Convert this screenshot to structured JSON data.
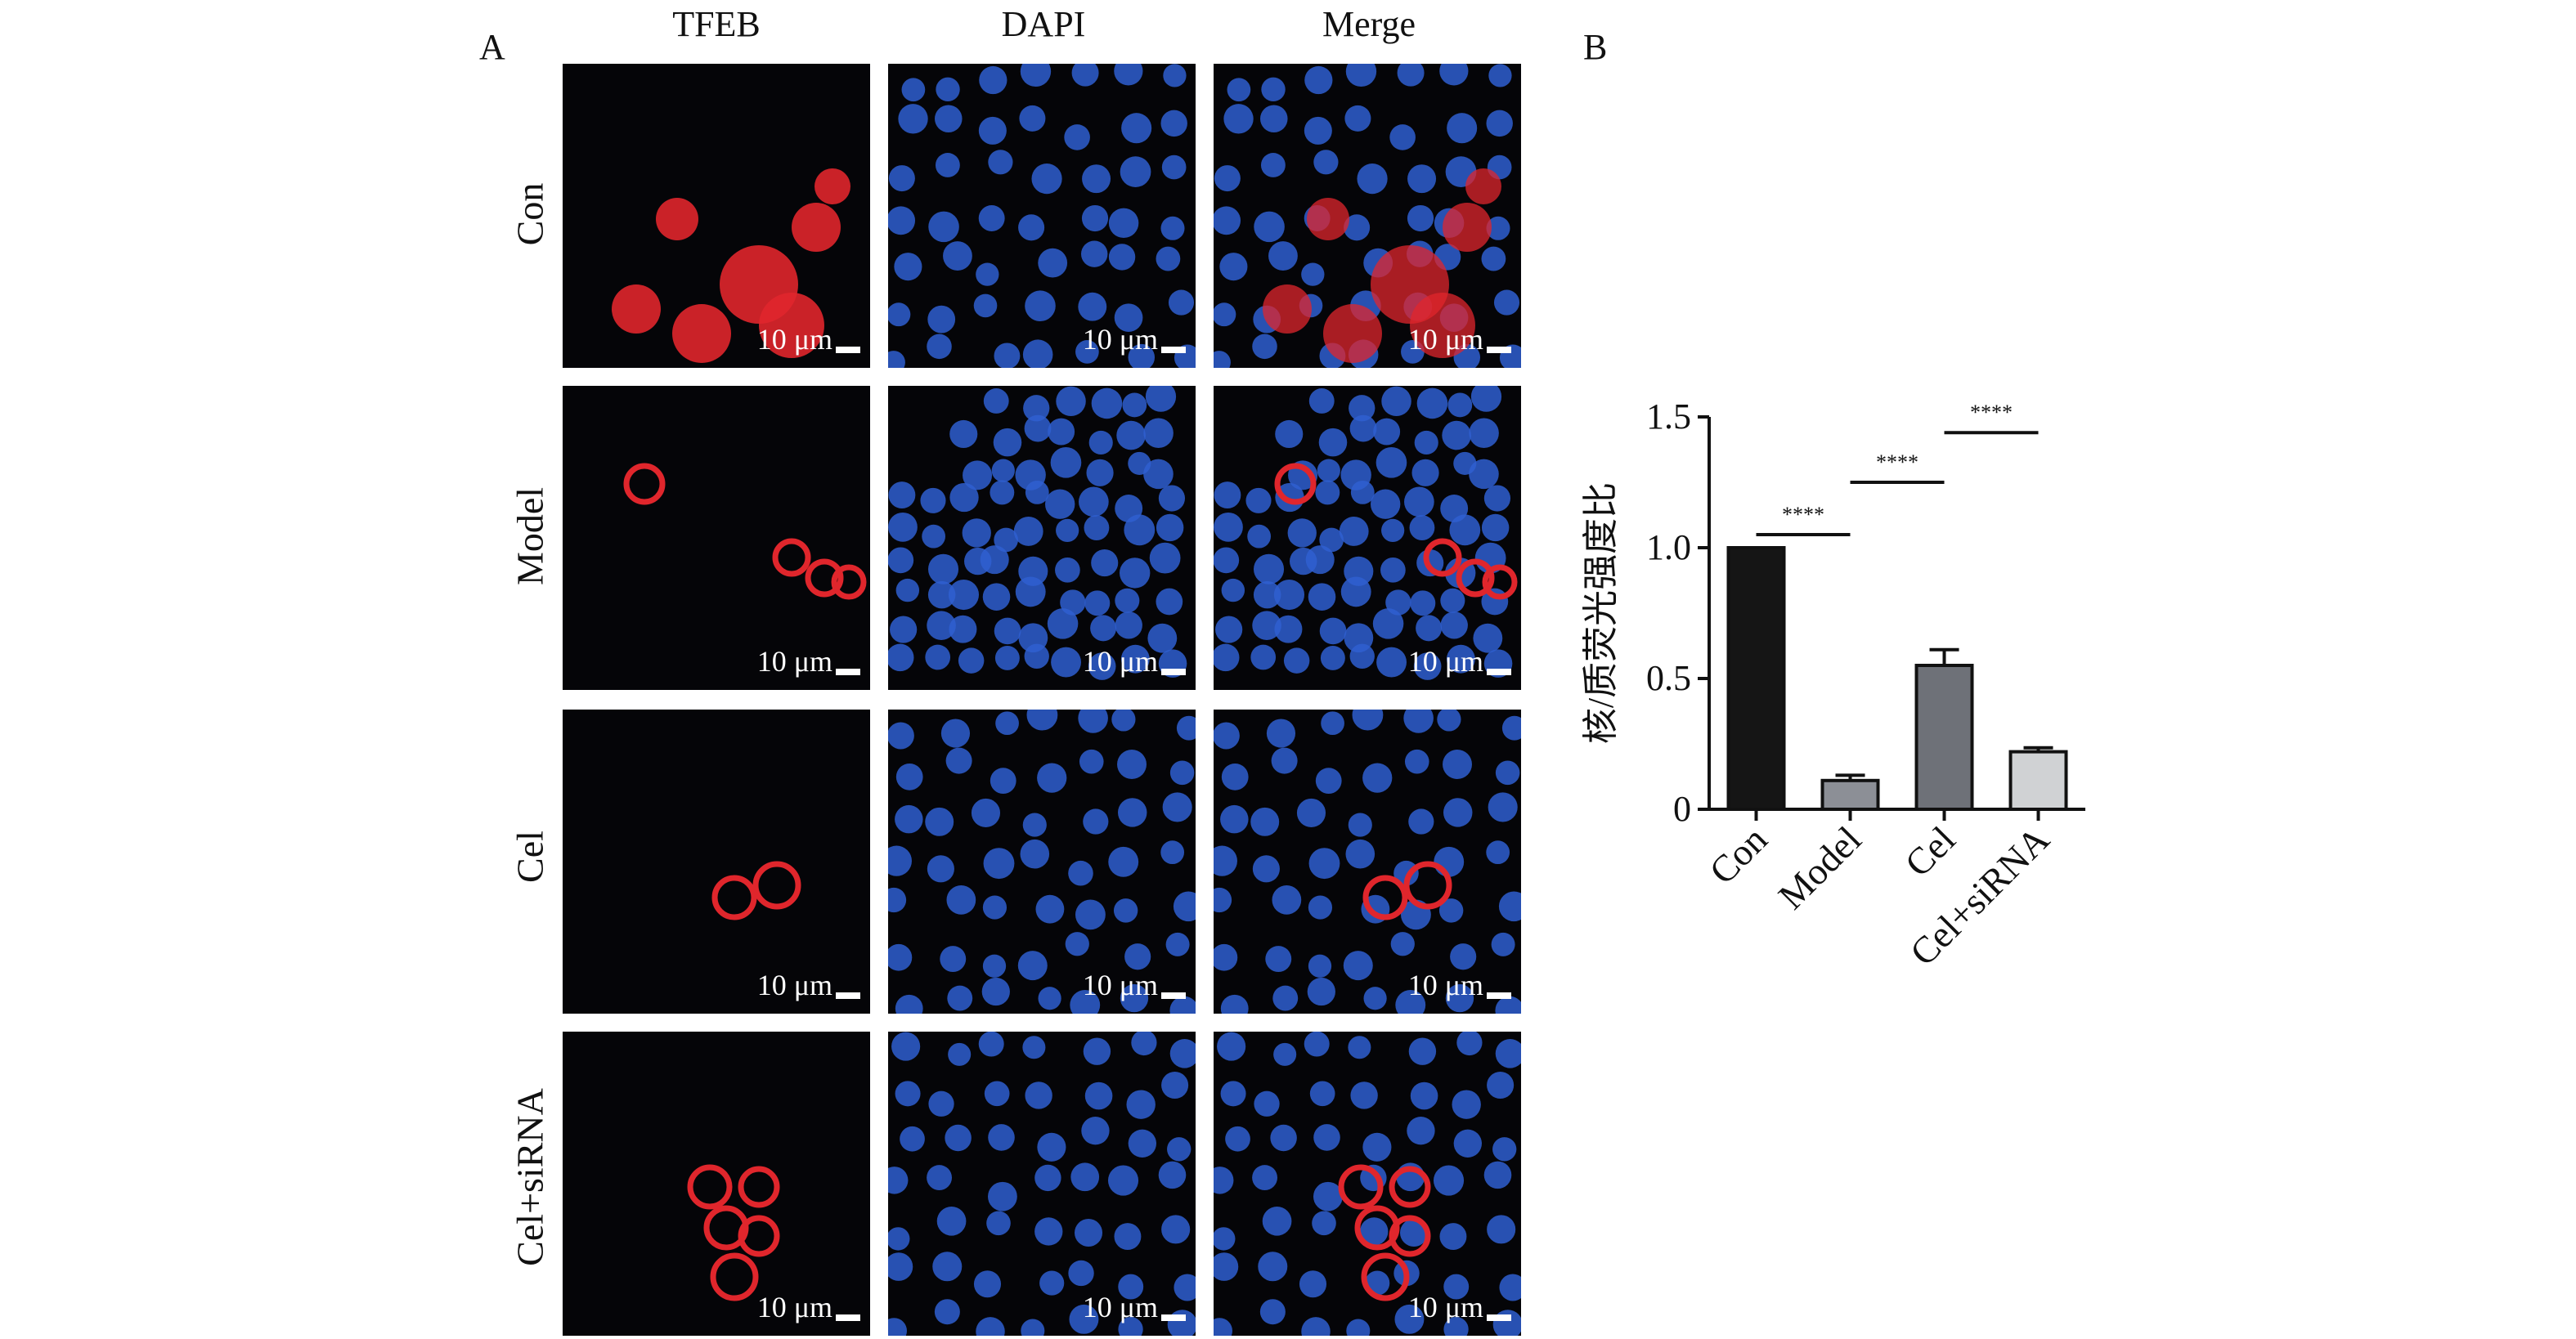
{
  "panel_a": {
    "letter": "A",
    "columns": [
      "TFEB",
      "DAPI",
      "Merge"
    ],
    "rows": [
      "Con",
      "Model",
      "Cel",
      "Cel+siRNA"
    ],
    "scale_label": "10 μm"
  },
  "panel_b": {
    "letter": "B"
  },
  "colors": {
    "tfeb_red": "#e0262c",
    "dapi_blue": "#2f5fd0",
    "background": "#050508"
  },
  "chart_data": {
    "type": "bar",
    "categories": [
      "Con",
      "Model",
      "Cel",
      "Cel+siRNA"
    ],
    "values": [
      1.0,
      0.11,
      0.55,
      0.22
    ],
    "errors": [
      0.0,
      0.02,
      0.06,
      0.015
    ],
    "bar_colors": [
      "#151515",
      "#8c8f96",
      "#6e7178",
      "#d0d2d4"
    ],
    "ylabel": "核/质荧光强度比",
    "xlabel": "",
    "ylim": [
      0,
      1.5
    ],
    "yticks": [
      0,
      0.5,
      1.0,
      1.5
    ],
    "ytick_labels": [
      "0",
      "0.5",
      "1.0",
      "1.5"
    ],
    "grid": false,
    "significance": [
      {
        "from": 0,
        "to": 1,
        "label": "****"
      },
      {
        "from": 1,
        "to": 2,
        "label": "****"
      },
      {
        "from": 2,
        "to": 3,
        "label": "****"
      }
    ]
  }
}
